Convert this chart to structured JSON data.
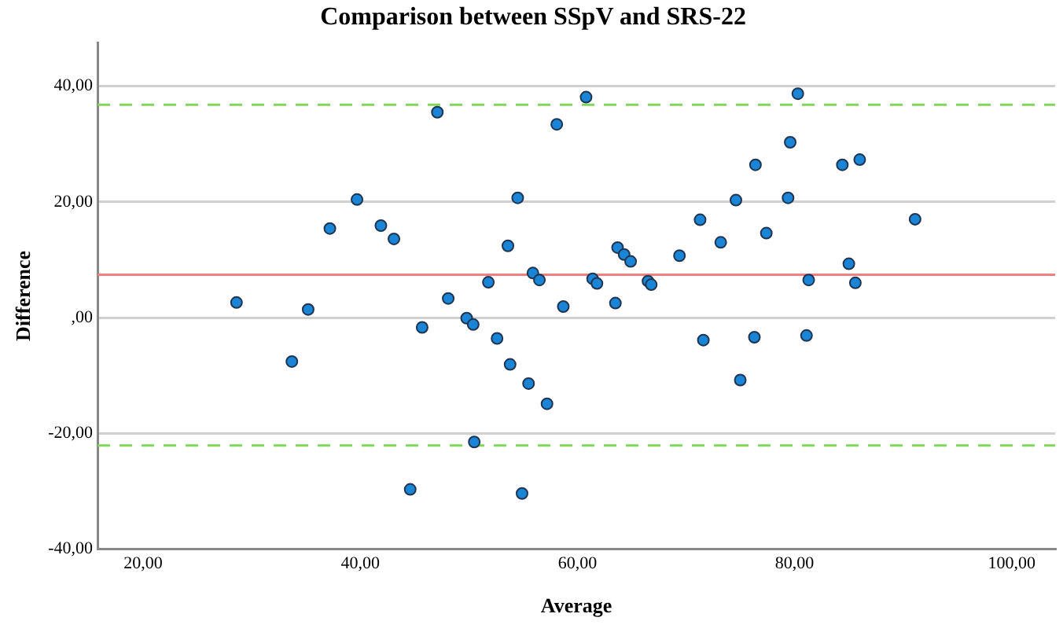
{
  "chart_data": {
    "type": "scatter",
    "title": "Comparison between SSpV and SRS-22",
    "xlabel": "Average",
    "ylabel": "Difference",
    "x": [
      28.6,
      33.7,
      35.2,
      37.2,
      39.7,
      41.9,
      43.1,
      44.6,
      45.7,
      47.1,
      48.1,
      49.8,
      50.4,
      50.5,
      51.8,
      52.6,
      53.6,
      53.8,
      54.5,
      54.9,
      55.5,
      55.9,
      56.5,
      57.2,
      58.1,
      58.7,
      60.8,
      61.4,
      61.8,
      63.5,
      63.7,
      64.3,
      64.9,
      66.5,
      66.8,
      69.4,
      71.3,
      71.6,
      73.2,
      74.6,
      75.0,
      76.3,
      76.4,
      77.4,
      79.4,
      79.6,
      80.3,
      81.1,
      81.3,
      84.4,
      85.0,
      85.6,
      86.0,
      91.1
    ],
    "series": [
      {
        "color": "#1a85d6",
        "values": [
          2.6,
          -7.6,
          1.4,
          15.4,
          20.4,
          15.9,
          13.6,
          -29.7,
          -1.7,
          35.5,
          3.3,
          -0.1,
          -1.2,
          -21.5,
          6.1,
          -3.6,
          12.4,
          -8.1,
          20.7,
          -30.4,
          -11.4,
          7.7,
          6.5,
          -14.9,
          33.4,
          1.9,
          38.1,
          6.7,
          5.9,
          2.5,
          12.1,
          10.9,
          9.7,
          6.3,
          5.7,
          10.7,
          16.9,
          -3.9,
          13.0,
          20.3,
          -10.8,
          -3.4,
          26.4,
          14.6,
          20.7,
          30.3,
          38.7,
          -3.1,
          6.5,
          26.4,
          9.3,
          6.0,
          27.3,
          17.0
        ]
      }
    ],
    "marker": "circle",
    "grid": "y",
    "legend": false,
    "xlim": [
      15.8,
      104
    ],
    "ylim": [
      -40,
      47.5
    ],
    "xticks": [
      {
        "value": 20,
        "label": "20,00"
      },
      {
        "value": 40,
        "label": "40,00"
      },
      {
        "value": 60,
        "label": "60,00"
      },
      {
        "value": 80,
        "label": "80,00"
      },
      {
        "value": 100,
        "label": "100,00"
      }
    ],
    "yticks": [
      {
        "value": -40,
        "label": "-40,00"
      },
      {
        "value": -20,
        "label": "-20,00"
      },
      {
        "value": 0,
        "label": ",00"
      },
      {
        "value": 20,
        "label": "20,00"
      },
      {
        "value": 40,
        "label": "40,00"
      }
    ],
    "ref_lines": [
      {
        "axis": "y",
        "value": 36.8,
        "color": "#7fd65a",
        "line_style": "dashed"
      },
      {
        "axis": "y",
        "value": 7.4,
        "color": "#f08080",
        "line_style": "solid"
      },
      {
        "axis": "y",
        "value": -22.1,
        "color": "#7fd65a",
        "line_style": "dashed"
      }
    ]
  }
}
